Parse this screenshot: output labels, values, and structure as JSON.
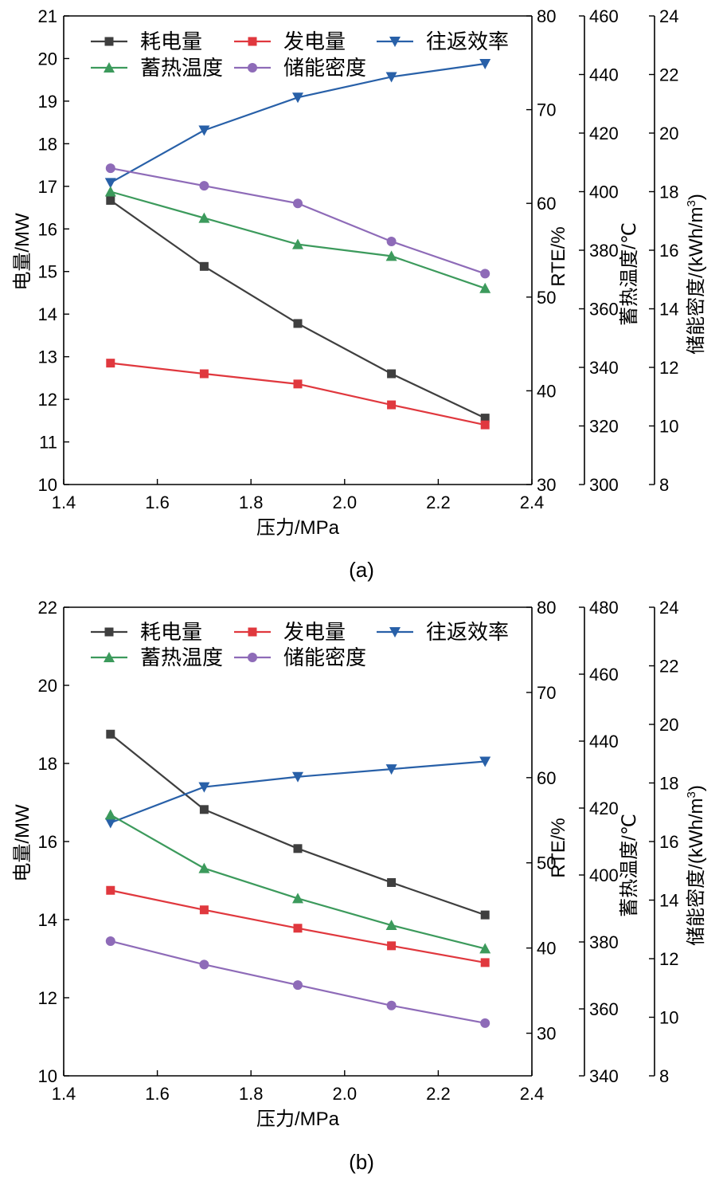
{
  "colors": {
    "consumption": "#3f3f3f",
    "generation": "#e0383e",
    "rte": "#2860a8",
    "temperature": "#3c9a5c",
    "density": "#8e6bb8",
    "axis": "#000000"
  },
  "chart_data": [
    {
      "type": "line",
      "caption": "(a)",
      "xlabel": "压力/MPa",
      "xlim": [
        1.4,
        2.4
      ],
      "xticks": [
        "1.4",
        "1.6",
        "1.8",
        "2.0",
        "2.2",
        "2.4"
      ],
      "x": [
        1.5,
        1.7,
        1.9,
        2.1,
        2.3
      ],
      "axes": {
        "power": {
          "label": "电量/MW",
          "lim": [
            10,
            21
          ],
          "ticks": [
            "10",
            "11",
            "12",
            "13",
            "14",
            "15",
            "16",
            "17",
            "18",
            "19",
            "20",
            "21"
          ]
        },
        "rte": {
          "label": "RTE/%",
          "lim": [
            30,
            80
          ],
          "ticks": [
            "30",
            "40",
            "50",
            "60",
            "70",
            "80"
          ]
        },
        "temp": {
          "label": "蓄热温度/℃",
          "lim": [
            300,
            460
          ],
          "ticks": [
            "300",
            "320",
            "340",
            "360",
            "380",
            "400",
            "420",
            "440",
            "460"
          ]
        },
        "density": {
          "label": "储能密度/(kWh/m",
          "sup": "3",
          "close": ")",
          "lim": [
            8,
            24
          ],
          "ticks": [
            "8",
            "10",
            "12",
            "14",
            "16",
            "18",
            "20",
            "22",
            "24"
          ]
        }
      },
      "series": [
        {
          "name": "耗电量",
          "axis": "power",
          "color_key": "consumption",
          "marker": "square",
          "values": [
            16.67,
            15.12,
            13.78,
            12.6,
            11.56
          ]
        },
        {
          "name": "发电量",
          "axis": "power",
          "color_key": "generation",
          "marker": "square",
          "values": [
            12.85,
            12.6,
            12.36,
            11.87,
            11.4
          ]
        },
        {
          "name": "往返效率",
          "axis": "rte",
          "color_key": "rte",
          "marker": "triangle-down",
          "values": [
            62.2,
            67.8,
            71.3,
            73.5,
            74.9
          ]
        },
        {
          "name": "蓄热温度",
          "axis": "temp",
          "color_key": "temperature",
          "marker": "triangle-up",
          "values": [
            400,
            391,
            382,
            378,
            367
          ]
        },
        {
          "name": "储能密度",
          "axis": "density",
          "color_key": "density",
          "marker": "circle",
          "values": [
            18.8,
            18.2,
            17.6,
            16.3,
            15.2
          ]
        }
      ]
    },
    {
      "type": "line",
      "caption": "(b)",
      "xlabel": "压力/MPa",
      "xlim": [
        1.4,
        2.4
      ],
      "xticks": [
        "1.4",
        "1.6",
        "1.8",
        "2.0",
        "2.2",
        "2.4"
      ],
      "x": [
        1.5,
        1.7,
        1.9,
        2.1,
        2.3
      ],
      "axes": {
        "power": {
          "label": "电量/MW",
          "lim": [
            10,
            22
          ],
          "ticks": [
            "10",
            "12",
            "14",
            "16",
            "18",
            "20",
            "22"
          ]
        },
        "rte": {
          "label": "RTE/%",
          "lim": [
            25,
            80
          ],
          "ticks": [
            "30",
            "40",
            "50",
            "60",
            "70",
            "80"
          ]
        },
        "temp": {
          "label": "蓄热温度/℃",
          "lim": [
            340,
            480
          ],
          "ticks": [
            "340",
            "360",
            "380",
            "400",
            "420",
            "440",
            "460",
            "480"
          ]
        },
        "density": {
          "label": "储能密度/(kWh/m",
          "sup": "3",
          "close": ")",
          "lim": [
            8,
            24
          ],
          "ticks": [
            "8",
            "10",
            "12",
            "14",
            "16",
            "18",
            "20",
            "22",
            "24"
          ]
        }
      },
      "series": [
        {
          "name": "耗电量",
          "axis": "power",
          "color_key": "consumption",
          "marker": "square",
          "values": [
            18.75,
            16.82,
            15.82,
            14.95,
            14.12
          ]
        },
        {
          "name": "发电量",
          "axis": "power",
          "color_key": "generation",
          "marker": "square",
          "values": [
            14.75,
            14.25,
            13.78,
            13.33,
            12.9
          ]
        },
        {
          "name": "往返效率",
          "axis": "rte",
          "color_key": "rte",
          "marker": "triangle-down",
          "values": [
            54.7,
            58.9,
            60.1,
            61.0,
            61.9
          ]
        },
        {
          "name": "蓄热温度",
          "axis": "temp",
          "color_key": "temperature",
          "marker": "triangle-up",
          "values": [
            418,
            402,
            393,
            385,
            378
          ]
        },
        {
          "name": "储能密度",
          "axis": "density",
          "color_key": "density",
          "marker": "circle",
          "values": [
            12.6,
            11.8,
            11.1,
            10.4,
            9.8
          ]
        }
      ]
    }
  ]
}
